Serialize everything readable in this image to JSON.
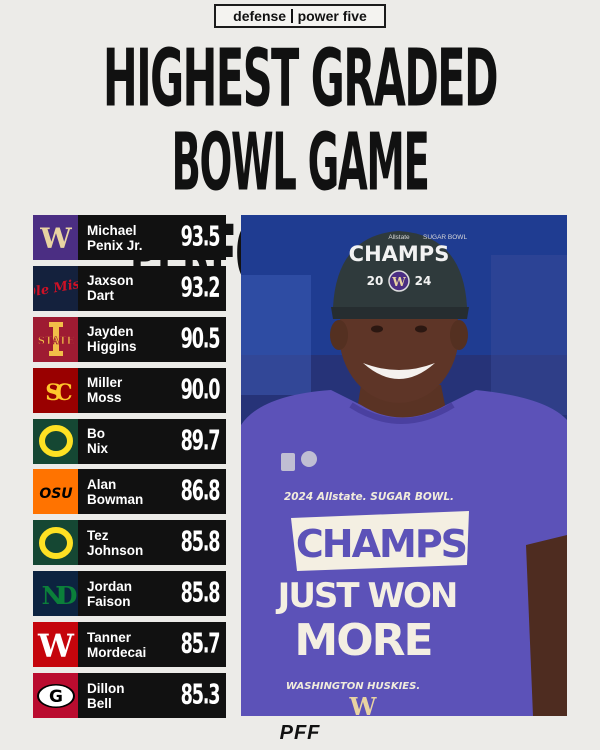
{
  "header": {
    "tag_left": "defense",
    "tag_right": "power five",
    "title_line1": "HIGHEST GRADED",
    "title_line2": "BOWL GAME PERFORMANCES"
  },
  "players": [
    {
      "first": "Michael",
      "last": "Penix Jr.",
      "grade": "93.5",
      "team_logo": "W",
      "logo_bg": "#4b2e83",
      "logo_fg": "#e8d3a2"
    },
    {
      "first": "Jaxson",
      "last": "Dart",
      "grade": "93.2",
      "team_logo": "Ole Miss",
      "logo_bg": "#14213d",
      "logo_fg": "#ce1126"
    },
    {
      "first": "Jayden",
      "last": "Higgins",
      "grade": "90.5",
      "team_logo": "STATE",
      "logo_bg": "#9e1b32",
      "logo_fg": "#f1be48"
    },
    {
      "first": "Miller",
      "last": "Moss",
      "grade": "90.0",
      "team_logo": "SC",
      "logo_bg": "#990000",
      "logo_fg": "#ffc72c"
    },
    {
      "first": "Bo",
      "last": "Nix",
      "grade": "89.7",
      "team_logo": "O",
      "logo_bg": "#154733",
      "logo_fg": "#fee123"
    },
    {
      "first": "Alan",
      "last": "Bowman",
      "grade": "86.8",
      "team_logo": "OSU",
      "logo_bg": "#ff7300",
      "logo_fg": "#000000"
    },
    {
      "first": "Tez",
      "last": "Johnson",
      "grade": "85.8",
      "team_logo": "O",
      "logo_bg": "#154733",
      "logo_fg": "#fee123"
    },
    {
      "first": "Jordan",
      "last": "Faison",
      "grade": "85.8",
      "team_logo": "ND",
      "logo_bg": "#0c2340",
      "logo_fg": "#0b7f3a"
    },
    {
      "first": "Tanner",
      "last": "Mordecai",
      "grade": "85.7",
      "team_logo": "W",
      "logo_bg": "#c5050c",
      "logo_fg": "#ffffff"
    },
    {
      "first": "Dillon",
      "last": "Bell",
      "grade": "85.3",
      "team_logo": "G",
      "logo_bg": "#ba0c2f",
      "logo_fg": "#ffffff"
    }
  ],
  "photo": {
    "hat_brand": "Allstate",
    "hat_bowl": "SUGAR BOWL",
    "hat_text": "CHAMPS",
    "hat_year_left": "20",
    "hat_year_right": "24",
    "hat_logo": "W",
    "shirt_line1": "2024 Allstate. SUGAR BOWL.",
    "shirt_line2": "CHAMPS",
    "shirt_line3": "JUST WON",
    "shirt_line4": "MORE",
    "shirt_line5": "WASHINGTON HUSKIES.",
    "shirt_logo": "W"
  },
  "footer": {
    "brand": "PFF"
  }
}
